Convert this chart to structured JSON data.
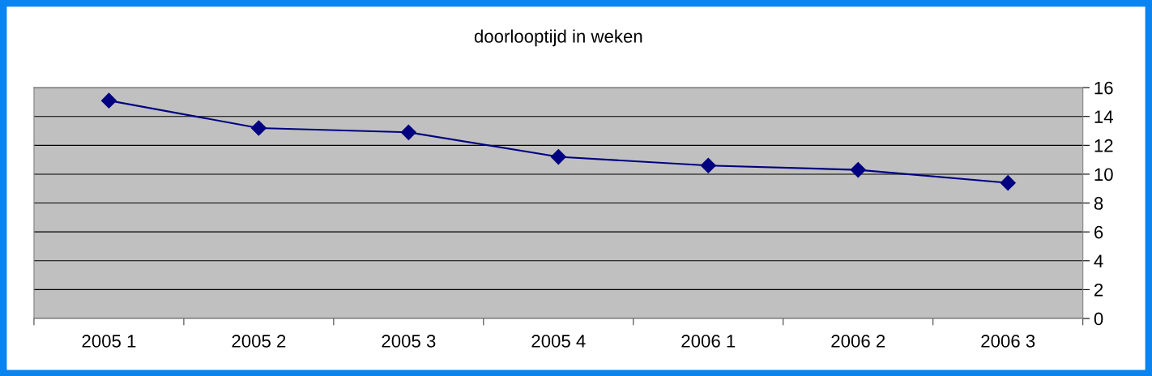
{
  "chart_data": {
    "type": "line",
    "title": "doorlooptijd in weken",
    "categories": [
      "2005 1",
      "2005 2",
      "2005 3",
      "2005 4",
      "2006 1",
      "2006 2",
      "2006 3"
    ],
    "series": [
      {
        "color": "#000080",
        "values": [
          15.1,
          13.2,
          12.9,
          11.2,
          10.6,
          10.3,
          9.4
        ]
      }
    ],
    "ylim": [
      0,
      16
    ],
    "yticks": [
      0,
      2,
      4,
      6,
      8,
      10,
      12,
      14,
      16
    ],
    "grid": "y",
    "marker": "diamond",
    "line_style": "solid"
  }
}
